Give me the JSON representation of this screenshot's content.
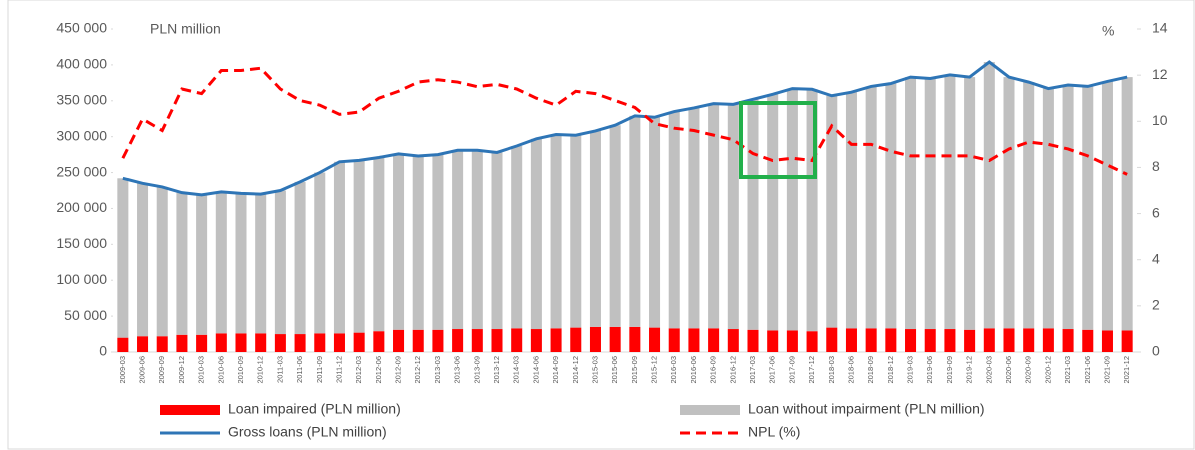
{
  "chart_data": {
    "type": "bar",
    "stacked": true,
    "ylabel": "PLN million",
    "y2label": "%",
    "categories": [
      "2009-03",
      "2009-06",
      "2009-09",
      "2009-12",
      "2010-03",
      "2010-06",
      "2010-09",
      "2010-12",
      "2011-03",
      "2011-06",
      "2011-09",
      "2011-12",
      "2012-03",
      "2012-06",
      "2012-09",
      "2012-12",
      "2013-03",
      "2013-06",
      "2013-09",
      "2013-12",
      "2014-03",
      "2014-06",
      "2014-09",
      "2014-12",
      "2015-03",
      "2015-06",
      "2015-09",
      "2015-12",
      "2016-03",
      "2016-06",
      "2016-09",
      "2016-12",
      "2017-03",
      "2017-06",
      "2017-09",
      "2017-12",
      "2018-03",
      "2018-06",
      "2018-09",
      "2018-12",
      "2019-03",
      "2019-06",
      "2019-09",
      "2019-12",
      "2020-03",
      "2020-06",
      "2020-09",
      "2020-12",
      "2021-03",
      "2021-06",
      "2021-09",
      "2021-12"
    ],
    "series": [
      {
        "name": "Loan impaired  (PLN million)",
        "type": "bar",
        "color": "#ff0000",
        "values": [
          20000,
          22000,
          22000,
          24000,
          24000,
          26000,
          26000,
          26000,
          25000,
          25000,
          26000,
          26000,
          27000,
          29000,
          31000,
          31000,
          31000,
          32000,
          32000,
          32000,
          33000,
          32000,
          33000,
          34000,
          35000,
          35000,
          35000,
          34000,
          33000,
          33000,
          33000,
          32000,
          31000,
          30000,
          30000,
          29000,
          34000,
          33000,
          33000,
          33000,
          32000,
          32000,
          32000,
          31000,
          33000,
          33000,
          33000,
          33000,
          32000,
          31000,
          30000,
          30000
        ]
      },
      {
        "name": "Loan without impairment  (PLN million)",
        "type": "bar",
        "color": "#c0c0c0",
        "values": [
          222000,
          213000,
          208000,
          198000,
          195000,
          197000,
          195000,
          194000,
          200000,
          212000,
          224000,
          239000,
          240000,
          242000,
          245000,
          242000,
          244000,
          249000,
          249000,
          246000,
          254000,
          265000,
          270000,
          268000,
          273000,
          281000,
          294000,
          293000,
          302000,
          307000,
          313000,
          313000,
          321000,
          329000,
          337000,
          337000,
          323000,
          329000,
          337000,
          341000,
          351000,
          349000,
          354000,
          352000,
          371000,
          350000,
          343000,
          334000,
          340000,
          339000,
          347000,
          353000
        ]
      },
      {
        "name": "Gross loans (PLN million)",
        "type": "line",
        "color": "#2e75b6",
        "values": [
          242000,
          235000,
          230000,
          222000,
          219000,
          223000,
          221000,
          220000,
          225000,
          237000,
          250000,
          265000,
          267000,
          271000,
          276000,
          273000,
          275000,
          281000,
          281000,
          278000,
          287000,
          297000,
          303000,
          302000,
          308000,
          316000,
          329000,
          327000,
          335000,
          340000,
          346000,
          345000,
          352000,
          359000,
          367000,
          366000,
          357000,
          362000,
          370000,
          374000,
          383000,
          381000,
          386000,
          383000,
          404000,
          383000,
          376000,
          367000,
          372000,
          370000,
          377000,
          383000
        ]
      },
      {
        "name": "NPL (%)",
        "type": "line",
        "dashed": true,
        "axis": "y2",
        "color": "#ff0000",
        "values": [
          8.4,
          10.1,
          9.6,
          11.4,
          11.2,
          12.2,
          12.2,
          12.3,
          11.4,
          10.9,
          10.7,
          10.3,
          10.4,
          11.0,
          11.3,
          11.7,
          11.8,
          11.7,
          11.5,
          11.6,
          11.4,
          11.0,
          10.7,
          11.3,
          11.2,
          10.9,
          10.6,
          9.9,
          9.7,
          9.6,
          9.4,
          9.2,
          8.6,
          8.3,
          8.4,
          8.3,
          9.8,
          9.0,
          9.0,
          8.7,
          8.5,
          8.5,
          8.5,
          8.5,
          8.3,
          8.8,
          9.1,
          9.0,
          8.8,
          8.5,
          8.1,
          7.7
        ]
      }
    ],
    "ylim": [
      0,
      450000
    ],
    "yticks": [
      0,
      {
        "value": 50000,
        "label": "50 000"
      },
      {
        "value": 100000,
        "label": "100 000"
      },
      {
        "value": 150000,
        "label": "150 000"
      },
      {
        "value": 200000,
        "label": "200 000"
      },
      {
        "value": 250000,
        "label": "250 000"
      },
      {
        "value": 300000,
        "label": "300 000"
      },
      {
        "value": 350000,
        "label": "350 000"
      },
      {
        "value": 400000,
        "label": "400 000"
      },
      {
        "value": 450000,
        "label": "450 000"
      }
    ],
    "y2lim": [
      0,
      14
    ],
    "y2ticks": [
      0,
      2,
      4,
      6,
      8,
      10,
      12,
      14
    ],
    "legend": "bottom"
  }
}
